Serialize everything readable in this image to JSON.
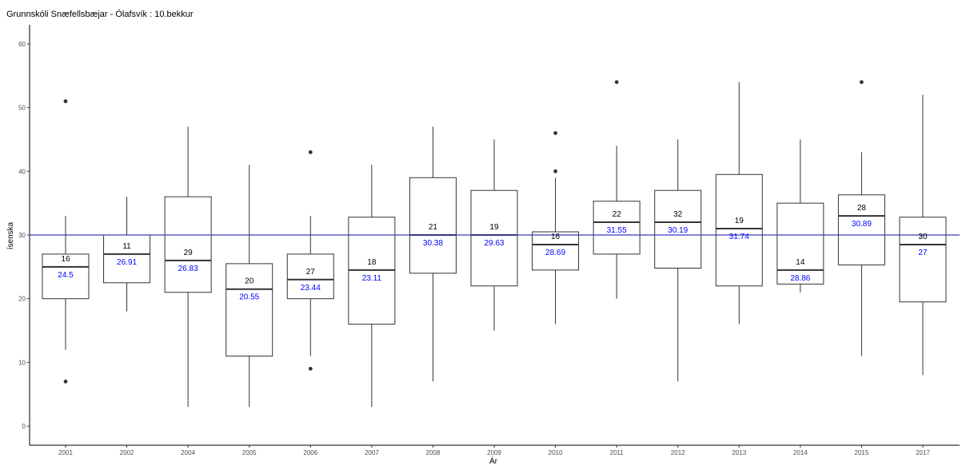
{
  "chart_data": {
    "type": "boxplot",
    "title": "Grunnskóli Snæfellsbæjar - Ólafsvík : 10.bekkur",
    "xlabel": "Ár",
    "ylabel": "ísenska",
    "ylim": [
      -3,
      63
    ],
    "yticks": [
      0,
      10,
      20,
      30,
      40,
      50,
      60
    ],
    "reference_line": 30,
    "colors": {
      "box": "#333333",
      "reference": "#3a3ac0",
      "mean_label": "#0000ff",
      "axis": "#000000"
    },
    "grid": false,
    "categories": [
      "2001",
      "2002",
      "2004",
      "2005",
      "2006",
      "2007",
      "2008",
      "2009",
      "2010",
      "2011",
      "2012",
      "2013",
      "2014",
      "2015",
      "2017"
    ],
    "boxes": [
      {
        "year": "2001",
        "q1": 20,
        "median": 25,
        "q3": 27,
        "low": 12,
        "high": 33,
        "outliers": [
          51,
          7
        ],
        "n": "16",
        "mean": "24.5"
      },
      {
        "year": "2002",
        "q1": 22.5,
        "median": 27,
        "q3": 30,
        "low": 18,
        "high": 36,
        "outliers": [],
        "n": "11",
        "mean": "26.91"
      },
      {
        "year": "2004",
        "q1": 21,
        "median": 26,
        "q3": 36,
        "low": 3,
        "high": 47,
        "outliers": [],
        "n": "29",
        "mean": "26.83"
      },
      {
        "year": "2005",
        "q1": 11,
        "median": 21.5,
        "q3": 25.5,
        "low": 3,
        "high": 41,
        "outliers": [],
        "n": "20",
        "mean": "20.55"
      },
      {
        "year": "2006",
        "q1": 20,
        "median": 23,
        "q3": 27,
        "low": 11,
        "high": 33,
        "outliers": [
          43,
          9
        ],
        "n": "27",
        "mean": "23.44"
      },
      {
        "year": "2007",
        "q1": 16,
        "median": 24.5,
        "q3": 32.8,
        "low": 3,
        "high": 41,
        "outliers": [],
        "n": "18",
        "mean": "23.11"
      },
      {
        "year": "2008",
        "q1": 24,
        "median": 30,
        "q3": 39,
        "low": 7,
        "high": 47,
        "outliers": [],
        "n": "21",
        "mean": "30.38"
      },
      {
        "year": "2009",
        "q1": 22,
        "median": 30,
        "q3": 37,
        "low": 15,
        "high": 45,
        "outliers": [],
        "n": "19",
        "mean": "29.63"
      },
      {
        "year": "2010",
        "q1": 24.5,
        "median": 28.5,
        "q3": 30.5,
        "low": 16,
        "high": 39,
        "outliers": [
          46,
          40
        ],
        "n": "16",
        "mean": "28.69"
      },
      {
        "year": "2011",
        "q1": 27,
        "median": 32,
        "q3": 35.3,
        "low": 20,
        "high": 44,
        "outliers": [
          54
        ],
        "n": "22",
        "mean": "31.55"
      },
      {
        "year": "2012",
        "q1": 24.8,
        "median": 32,
        "q3": 37,
        "low": 7,
        "high": 45,
        "outliers": [],
        "n": "32",
        "mean": "30.19"
      },
      {
        "year": "2013",
        "q1": 22,
        "median": 31,
        "q3": 39.5,
        "low": 16,
        "high": 54,
        "outliers": [],
        "n": "19",
        "mean": "31.74"
      },
      {
        "year": "2014",
        "q1": 22.3,
        "median": 24.5,
        "q3": 35,
        "low": 21,
        "high": 45,
        "outliers": [],
        "n": "14",
        "mean": "28.86"
      },
      {
        "year": "2015",
        "q1": 25.3,
        "median": 33,
        "q3": 36.3,
        "low": 11,
        "high": 43,
        "outliers": [
          54
        ],
        "n": "28",
        "mean": "30.89"
      },
      {
        "year": "2017",
        "q1": 19.5,
        "median": 28.5,
        "q3": 32.8,
        "low": 8,
        "high": 52,
        "outliers": [],
        "n": "30",
        "mean": "27"
      }
    ]
  }
}
